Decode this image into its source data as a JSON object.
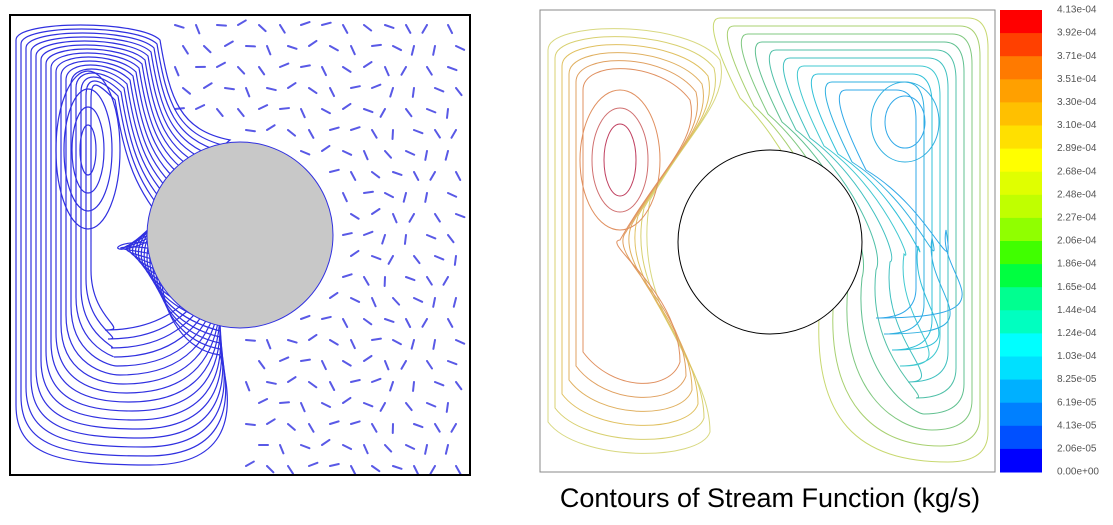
{
  "colorbar": {
    "labels": [
      "4.13e-04",
      "3.92e-04",
      "3.71e-04",
      "3.51e-04",
      "3.30e-04",
      "3.10e-04",
      "2.89e-04",
      "2.68e-04",
      "2.48e-04",
      "2.27e-04",
      "2.06e-04",
      "1.86e-04",
      "1.65e-04",
      "1.44e-04",
      "1.24e-04",
      "1.03e-04",
      "8.25e-05",
      "6.19e-05",
      "4.13e-05",
      "2.06e-05",
      "0.00e+00"
    ],
    "colors": [
      "#ff0000",
      "#ff4000",
      "#ff7a00",
      "#ffa000",
      "#ffc000",
      "#ffe000",
      "#ffff00",
      "#e0ff00",
      "#c0ff00",
      "#90ff00",
      "#40ff00",
      "#00ff40",
      "#00ff90",
      "#00ffc0",
      "#00ffff",
      "#00e0ff",
      "#00b0ff",
      "#0080ff",
      "#0050ff",
      "#0000ff"
    ]
  },
  "caption": "Contours of Stream Function (kg/s)"
}
